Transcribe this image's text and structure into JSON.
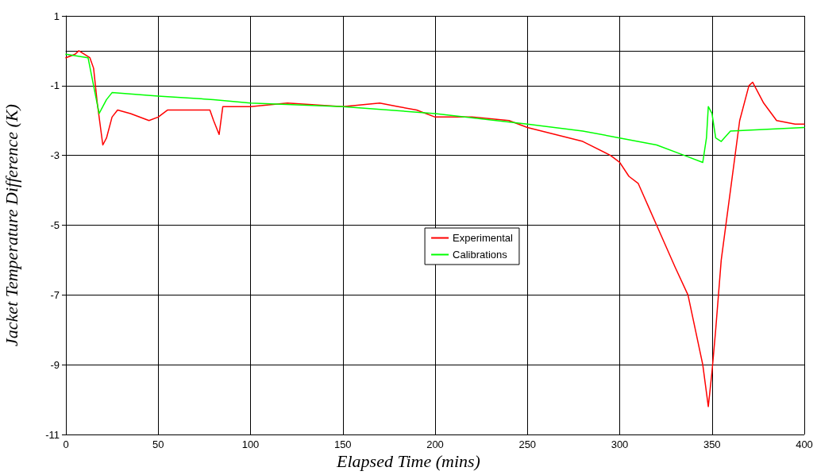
{
  "chart_data": {
    "type": "line",
    "xlabel": "Elapsed Time (mins)",
    "ylabel": "Jacket Temperature Difference (K)",
    "xlim": [
      0,
      400
    ],
    "xticks": [
      0,
      50,
      100,
      150,
      200,
      250,
      300,
      350,
      400
    ],
    "ylim": [
      -11,
      1
    ],
    "yticks": [
      -11,
      -9,
      -7,
      -5,
      -3,
      -1,
      1
    ],
    "grid": true,
    "legend": "center",
    "marker": "none",
    "line_style": "solid",
    "series": [
      {
        "name": "Experimental",
        "color": "#ff0000",
        "x": [
          0,
          5,
          7,
          13,
          15,
          17,
          20,
          22,
          25,
          28,
          35,
          45,
          50,
          55,
          70,
          78,
          80,
          83,
          85,
          100,
          120,
          150,
          170,
          180,
          190,
          200,
          220,
          240,
          250,
          265,
          280,
          295,
          300,
          305,
          310,
          315,
          320,
          330,
          337,
          345,
          348,
          350,
          352,
          355,
          360,
          365,
          370,
          372,
          378,
          385,
          395,
          400
        ],
        "values": [
          -0.2,
          -0.1,
          0,
          -0.2,
          -0.5,
          -1.5,
          -2.7,
          -2.5,
          -1.9,
          -1.7,
          -1.8,
          -2.0,
          -1.9,
          -1.7,
          -1.7,
          -1.7,
          -2.0,
          -2.4,
          -1.6,
          -1.6,
          -1.5,
          -1.6,
          -1.5,
          -1.6,
          -1.7,
          -1.9,
          -1.9,
          -2.0,
          -2.2,
          -2.4,
          -2.6,
          -3.0,
          -3.2,
          -3.6,
          -3.8,
          -4.4,
          -5.0,
          -6.2,
          -7.0,
          -9.0,
          -10.2,
          -9.2,
          -8.0,
          -6.0,
          -4.0,
          -2.0,
          -1.0,
          -0.9,
          -1.5,
          -2.0,
          -2.1,
          -2.1
        ]
      },
      {
        "name": "Calibrations",
        "color": "#00ff00",
        "x": [
          0,
          12,
          15,
          18,
          22,
          25,
          50,
          80,
          100,
          150,
          200,
          250,
          280,
          300,
          320,
          335,
          345,
          347,
          348,
          350,
          352,
          355,
          360,
          400
        ],
        "values": [
          -0.1,
          -0.2,
          -1.0,
          -1.8,
          -1.4,
          -1.2,
          -1.3,
          -1.4,
          -1.5,
          -1.6,
          -1.8,
          -2.1,
          -2.3,
          -2.5,
          -2.7,
          -3.0,
          -3.2,
          -2.5,
          -1.6,
          -1.8,
          -2.5,
          -2.6,
          -2.3,
          -2.2
        ]
      }
    ]
  }
}
